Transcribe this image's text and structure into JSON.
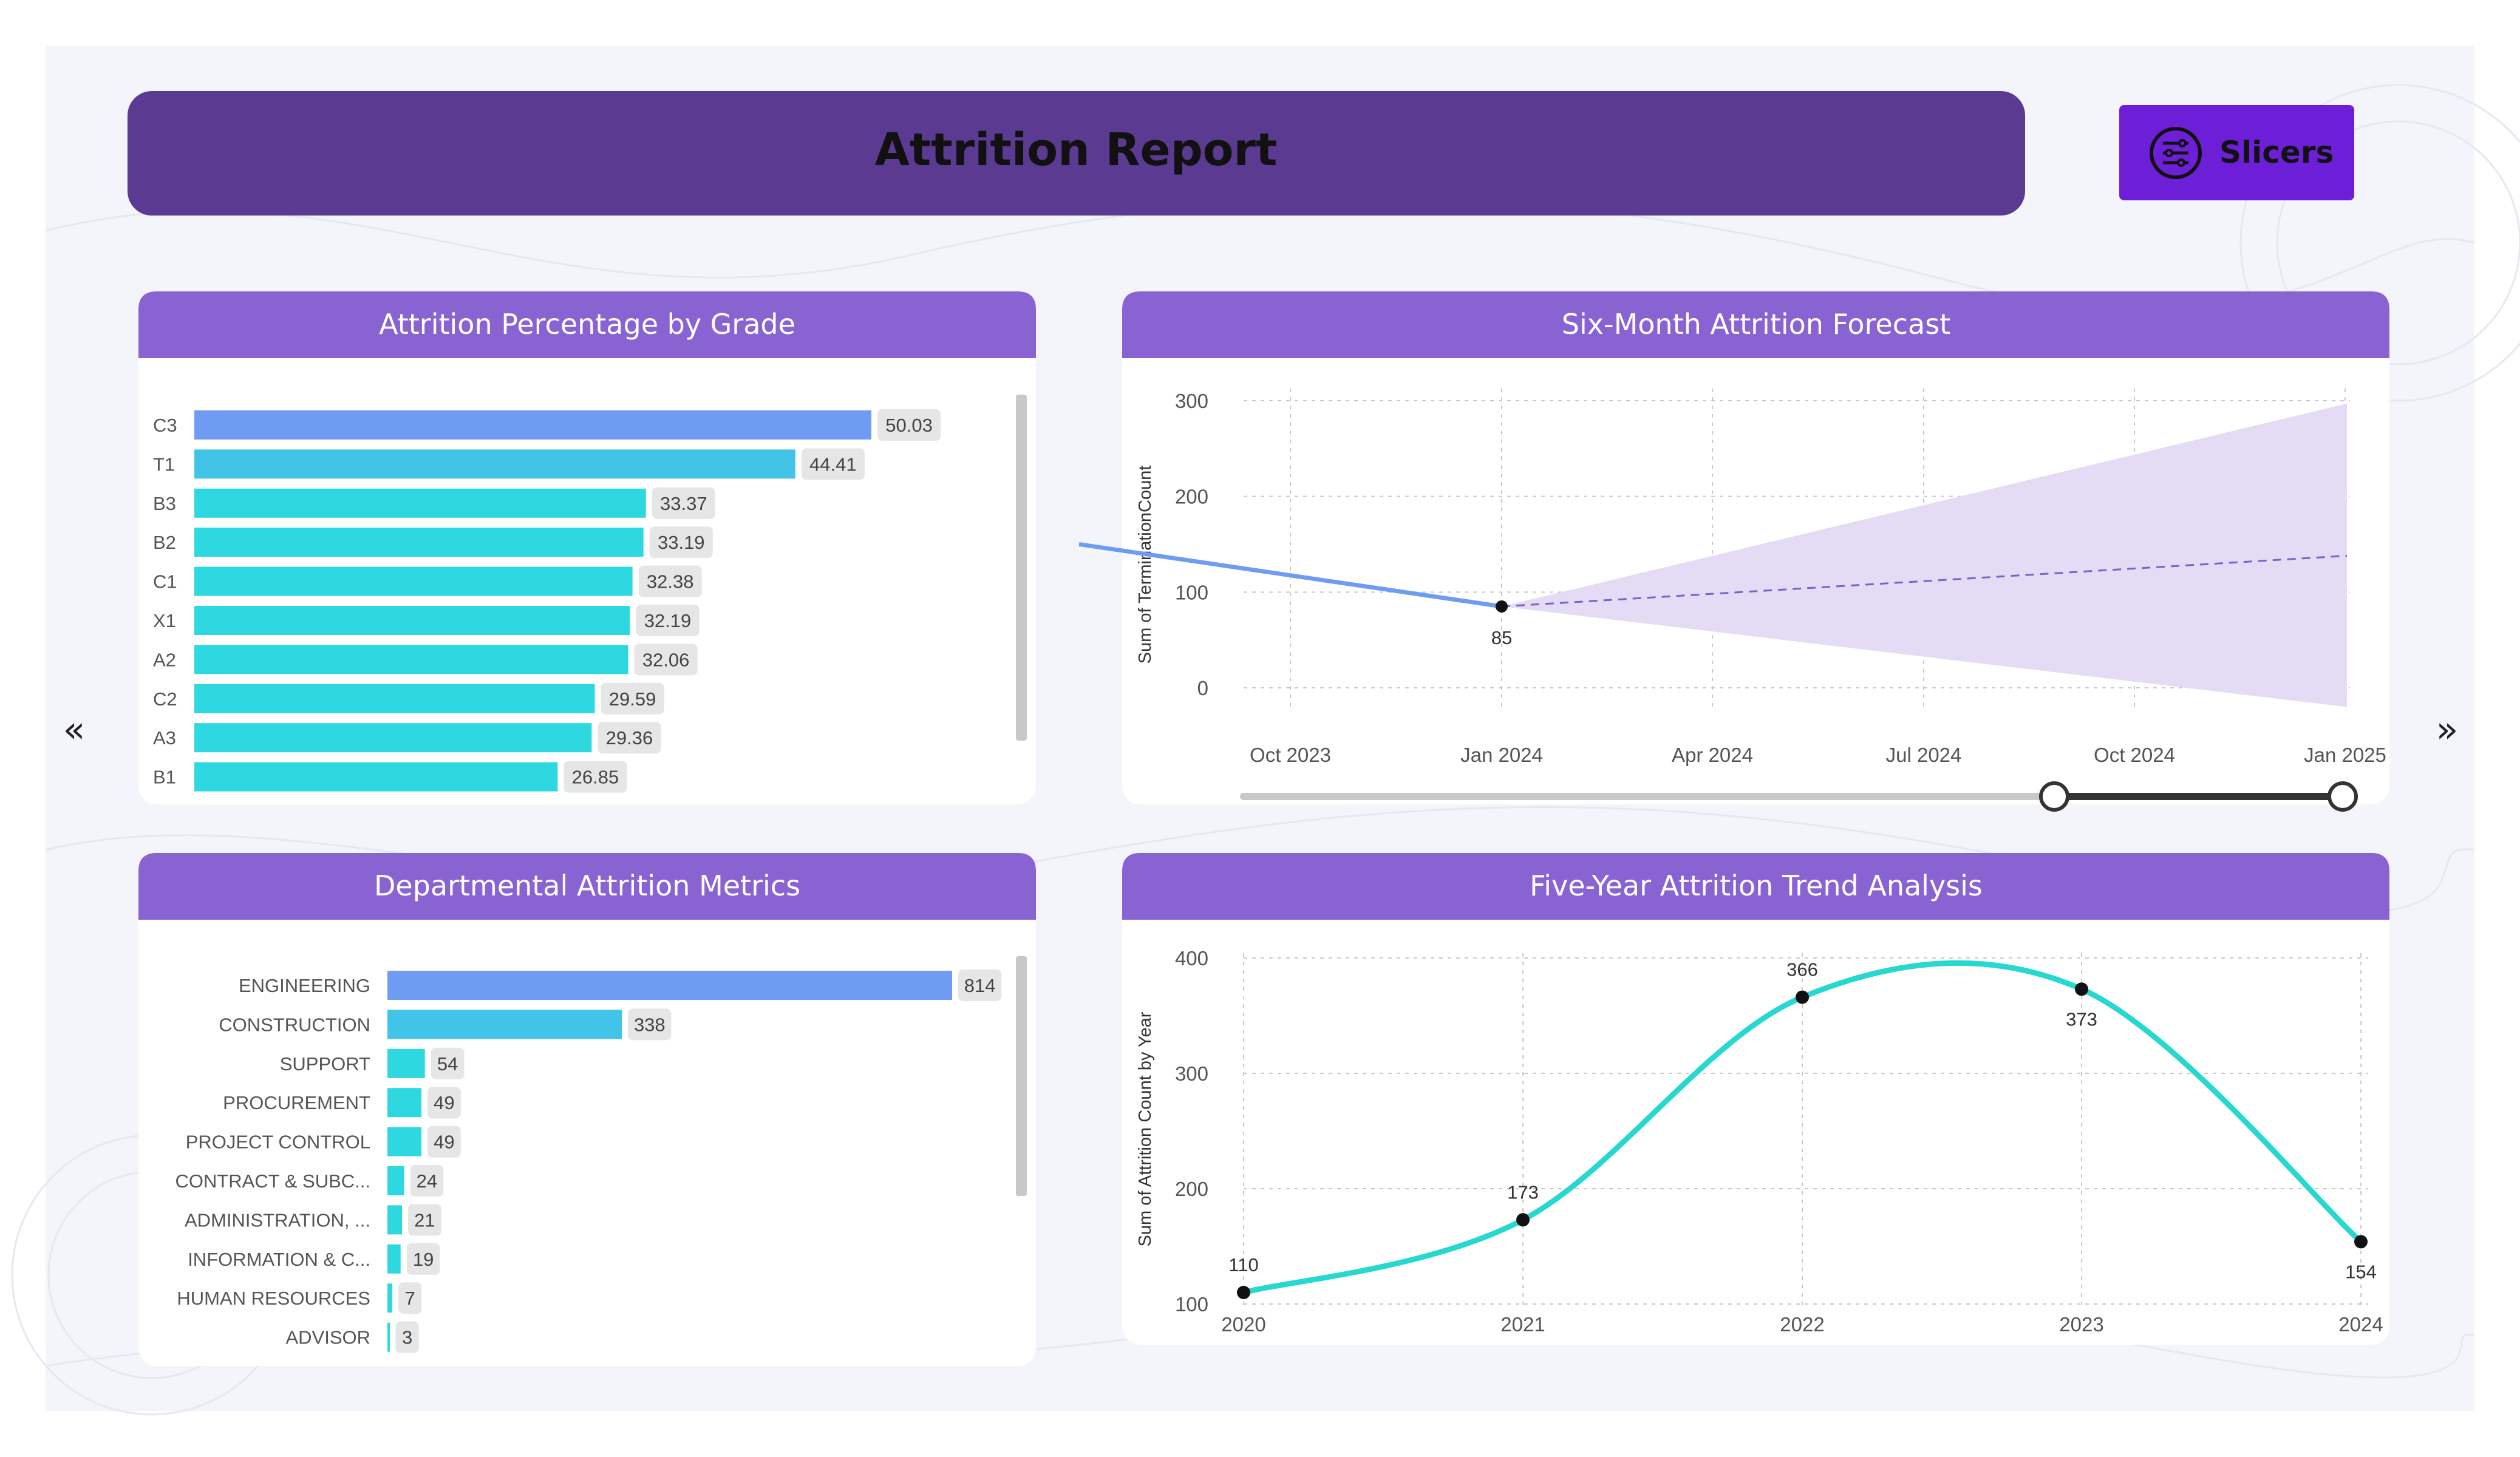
{
  "header": {
    "title": "Attrition Report",
    "slicers_label": "Slicers"
  },
  "colors": {
    "header_bg": "#5b3a92",
    "slicer_bg": "#6d1fd8",
    "panel_header": "#8a63d2",
    "bar_blue": "#6f9cf3",
    "bar_light_blue": "#41c4e8",
    "bar_cyan": "#2ed8e0",
    "forecast_band": "#e4dcf5",
    "forecast_line": "#7a62c8",
    "trend_line": "#26d8d0"
  },
  "nav": {
    "prev": "«",
    "next": "»"
  },
  "chart_data": [
    {
      "id": "grade",
      "type": "bar",
      "orientation": "horizontal",
      "title": "Attrition Percentage by Grade",
      "categories": [
        "C3",
        "T1",
        "B3",
        "B2",
        "C1",
        "X1",
        "A2",
        "C2",
        "A3",
        "B1"
      ],
      "values": [
        50.03,
        44.41,
        33.37,
        33.19,
        32.38,
        32.19,
        32.06,
        29.59,
        29.36,
        26.85
      ],
      "value_labels": [
        "50.03",
        "44.41",
        "33.37",
        "33.19",
        "32.38",
        "32.19",
        "32.06",
        "29.59",
        "29.36",
        "26.85"
      ],
      "xlim": [
        0,
        50.03
      ]
    },
    {
      "id": "forecast",
      "type": "line",
      "title": "Six-Month Attrition Forecast",
      "ylabel": "Sum of TerminationCount",
      "yticks": [
        "300",
        "200",
        "100",
        "0"
      ],
      "ytick_values": [
        300,
        200,
        100,
        0
      ],
      "xticks": [
        "Oct 2023",
        "Jan 2024",
        "Apr 2024",
        "Jul 2024",
        "Oct 2024",
        "Jan 2025"
      ],
      "ylim": [
        0,
        300
      ],
      "actual": [
        {
          "x": -1.0,
          "y": 150
        },
        {
          "x": 1.0,
          "y": 85
        }
      ],
      "actual_label": "85",
      "forecast": [
        {
          "x": 1.0,
          "y": 85
        },
        {
          "x": 5.0,
          "y": 138
        }
      ],
      "band_upper_end": 297,
      "band_lower_end": -20
    },
    {
      "id": "dept",
      "type": "bar",
      "orientation": "horizontal",
      "title": "Departmental Attrition Metrics",
      "categories": [
        "ENGINEERING",
        "CONSTRUCTION",
        "SUPPORT",
        "PROCUREMENT",
        "PROJECT CONTROL",
        "CONTRACT & SUBC...",
        "ADMINISTRATION, ...",
        "INFORMATION & C...",
        "HUMAN RESOURCES",
        "ADVISOR"
      ],
      "values": [
        814,
        338,
        54,
        49,
        49,
        24,
        21,
        19,
        7,
        3
      ],
      "value_labels": [
        "814",
        "338",
        "54",
        "49",
        "49",
        "24",
        "21",
        "19",
        "7",
        "3"
      ],
      "xlim": [
        0,
        814
      ]
    },
    {
      "id": "trend",
      "type": "line",
      "title": "Five-Year Attrition Trend Analysis",
      "ylabel": "Sum of Attrition Count by Year",
      "x": [
        "2020",
        "2021",
        "2022",
        "2023",
        "2024"
      ],
      "values": [
        110,
        173,
        366,
        373,
        154
      ],
      "value_labels": [
        "110",
        "173",
        "366",
        "373",
        "154"
      ],
      "yticks": [
        "400",
        "300",
        "200",
        "100"
      ],
      "ytick_values": [
        400,
        300,
        200,
        100
      ],
      "ylim": [
        100,
        400
      ]
    }
  ]
}
